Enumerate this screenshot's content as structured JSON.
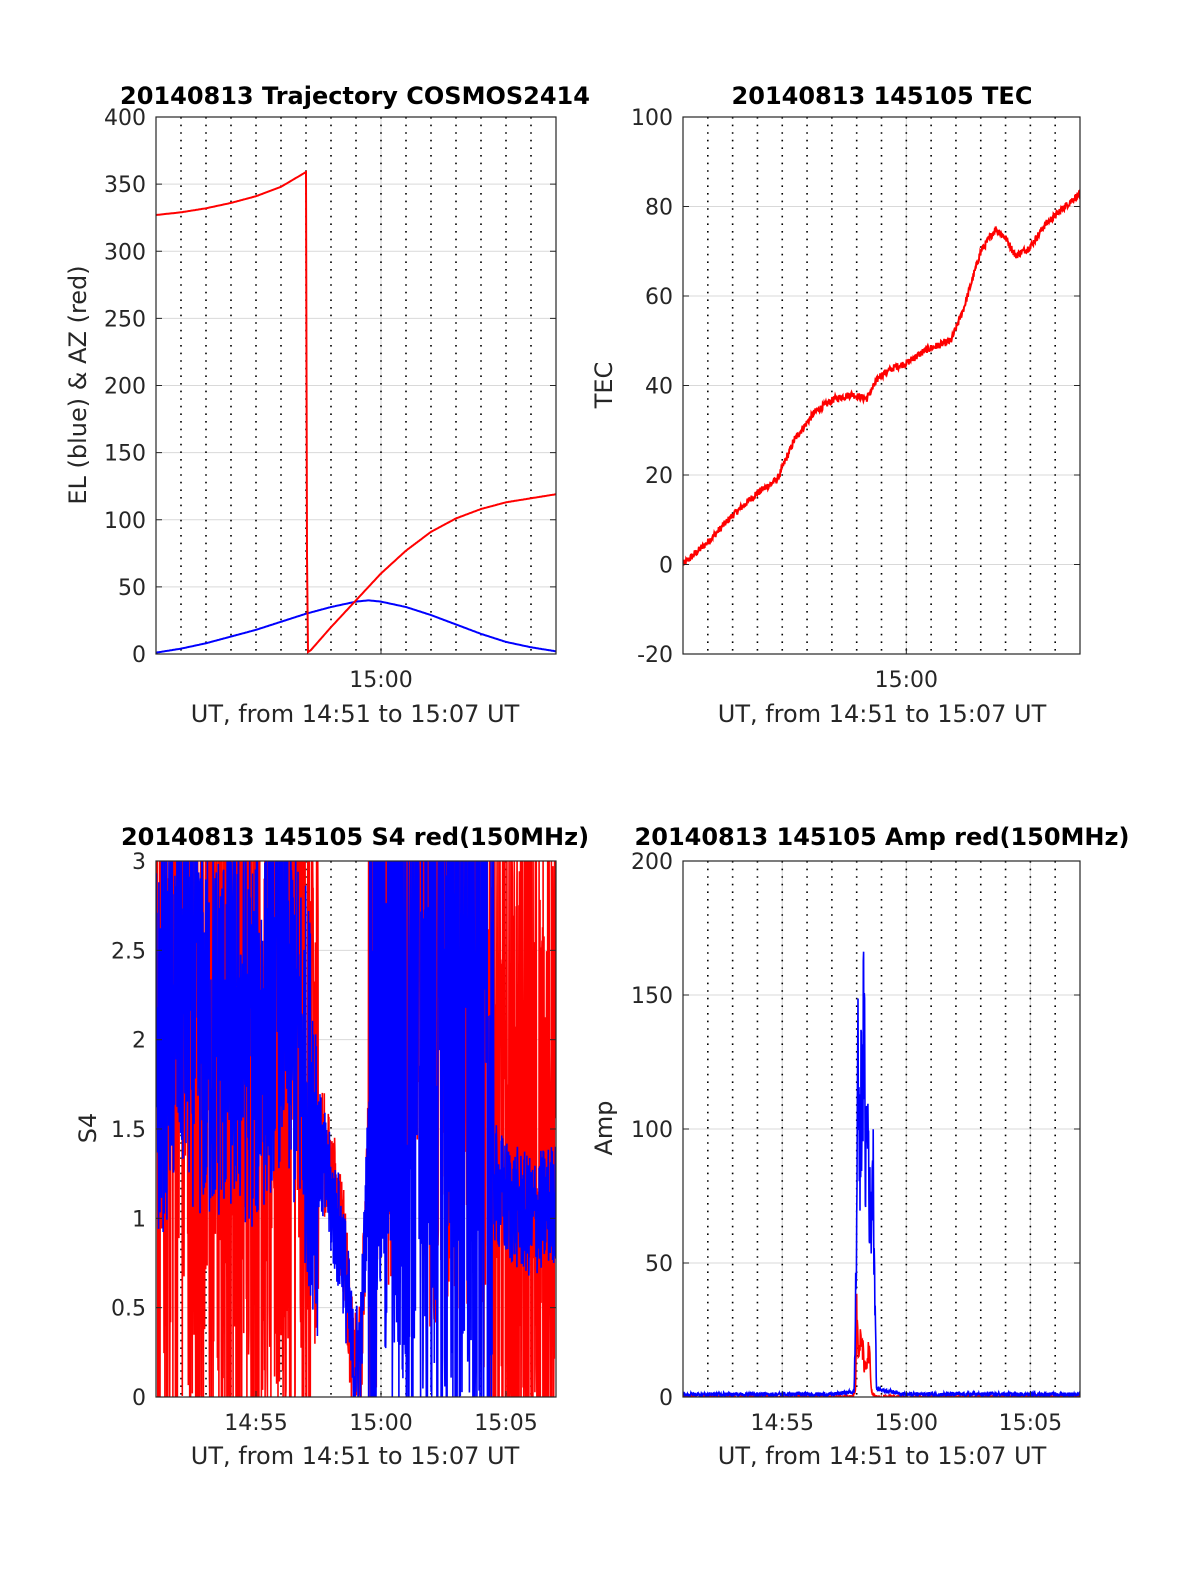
{
  "colors": {
    "el": "#0000ff",
    "az": "#ff0000",
    "grid_minor": "#000000",
    "grid_major": "#d9d9d9",
    "axis": "#262626"
  },
  "chart_data": [
    {
      "id": "trajectory",
      "type": "line",
      "title": "20140813 Trajectory COSMOS2414",
      "xlabel": "UT, from 14:51 to 15:07 UT",
      "ylabel": "EL (blue) & AZ (red)",
      "xlim_minutes": [
        0,
        16
      ],
      "xtick_minute": [
        9
      ],
      "xtick_labels": [
        "15:00"
      ],
      "ylim": [
        0,
        400
      ],
      "yticks": [
        0,
        50,
        100,
        150,
        200,
        250,
        300,
        350,
        400
      ],
      "ytick_labels": [
        "0",
        "50",
        "100",
        "150",
        "200",
        "250",
        "300",
        "350",
        "400"
      ],
      "series": [
        {
          "name": "EL",
          "color": "#0000ff",
          "x": [
            0,
            1,
            2,
            3,
            4,
            5,
            6,
            7,
            8,
            8.5,
            9,
            10,
            11,
            12,
            13,
            14,
            15,
            16
          ],
          "y": [
            1,
            4,
            8,
            13,
            18,
            24,
            30,
            35,
            39,
            40,
            39,
            35,
            29,
            22,
            15,
            9,
            5,
            2
          ]
        },
        {
          "name": "AZ",
          "color": "#ff0000",
          "x": [
            0,
            1,
            2,
            3,
            4,
            5,
            6,
            6.05,
            6.2,
            7,
            8,
            9,
            10,
            11,
            12,
            13,
            14,
            15,
            16
          ],
          "y": [
            327,
            329,
            332,
            336,
            341,
            348,
            359,
            1,
            3,
            20,
            40,
            60,
            77,
            91,
            101,
            108,
            113,
            116,
            119
          ]
        }
      ]
    },
    {
      "id": "tec",
      "type": "line",
      "title": "20140813 145105 TEC",
      "xlabel": "UT, from 14:51 to 15:07 UT",
      "ylabel": "TEC",
      "xlim_minutes": [
        0,
        16
      ],
      "xtick_minute": [
        9
      ],
      "xtick_labels": [
        "15:00"
      ],
      "ylim": [
        -20,
        100
      ],
      "yticks": [
        -20,
        0,
        20,
        40,
        60,
        80,
        100
      ],
      "ytick_labels": [
        "-20",
        "0",
        "20",
        "40",
        "60",
        "80",
        "100"
      ],
      "series": [
        {
          "name": "TEC",
          "color": "#ff0000",
          "x": [
            0,
            1,
            2,
            3,
            3.8,
            4.5,
            5.3,
            6.1,
            6.8,
            7.4,
            7.9,
            8.5,
            9.0,
            9.8,
            10.8,
            11.3,
            12.0,
            12.6,
            13.0,
            13.4,
            14.0,
            14.6,
            15.2,
            16.0
          ],
          "y": [
            0,
            5,
            11,
            16,
            19,
            28,
            34,
            37,
            38,
            37,
            42,
            44,
            45,
            48,
            50,
            57,
            70,
            75,
            73,
            69,
            71,
            76,
            79,
            83
          ]
        }
      ]
    },
    {
      "id": "s4",
      "type": "line",
      "title": "20140813 145105 S4 red(150MHz)",
      "xlabel": "UT, from 14:51 to 15:07 UT",
      "ylabel": "S4",
      "xlim_minutes": [
        0,
        16
      ],
      "xtick_minute": [
        4,
        9,
        14
      ],
      "xtick_labels": [
        "14:55",
        "15:00",
        "15:05"
      ],
      "ylim": [
        0,
        3
      ],
      "yticks": [
        0,
        0.5,
        1,
        1.5,
        2,
        2.5,
        3
      ],
      "ytick_labels": [
        "0",
        "0.5",
        "1",
        "1.5",
        "2",
        "2.5",
        "3"
      ],
      "series": [
        {
          "name": "S4 red",
          "color": "#ff0000",
          "x": [
            0,
            1,
            2,
            3,
            4,
            5,
            6,
            6.5,
            7,
            7.5,
            7.9,
            8.2,
            8.5,
            9,
            10,
            11,
            12,
            13,
            13.5,
            14,
            15,
            16
          ],
          "y": [
            1.8,
            2.4,
            1.9,
            2.2,
            2.1,
            2.3,
            1.9,
            1.5,
            1.2,
            0.9,
            0.1,
            0.2,
            1.5,
            2.8,
            3.0,
            2.7,
            2.9,
            2.8,
            1.3,
            1.0,
            1.1,
            1.0
          ]
        },
        {
          "name": "S4 blue",
          "color": "#0000ff",
          "x": [
            0,
            1,
            2,
            3,
            4,
            5,
            6,
            6.5,
            7,
            7.5,
            7.9,
            8.2,
            8.5,
            9,
            10,
            11,
            12,
            13,
            13.5,
            14,
            15,
            16
          ],
          "y": [
            1.9,
            2.3,
            2.0,
            2.1,
            2.0,
            2.4,
            1.8,
            1.4,
            1.1,
            0.8,
            0.15,
            0.3,
            1.4,
            2.5,
            2.0,
            2.2,
            1.9,
            2.1,
            1.2,
            1.1,
            1.0,
            1.1
          ]
        }
      ]
    },
    {
      "id": "amp",
      "type": "line",
      "title": "20140813 145105 Amp red(150MHz)",
      "xlabel": "UT, from 14:51 to 15:07 UT",
      "ylabel": "Amp",
      "xlim_minutes": [
        0,
        16
      ],
      "xtick_minute": [
        4,
        9,
        14
      ],
      "xtick_labels": [
        "14:55",
        "15:00",
        "15:05"
      ],
      "ylim": [
        0,
        200
      ],
      "yticks": [
        0,
        50,
        100,
        150,
        200
      ],
      "ytick_labels": [
        "0",
        "50",
        "100",
        "150",
        "200"
      ],
      "series": [
        {
          "name": "Amp red",
          "color": "#ff0000",
          "x": [
            0,
            6.8,
            6.95,
            7.0,
            7.1,
            7.2,
            7.3,
            7.5,
            7.6,
            7.8,
            16
          ],
          "y": [
            0,
            0,
            2,
            30,
            15,
            25,
            10,
            18,
            2,
            0,
            0
          ]
        },
        {
          "name": "Amp blue",
          "color": "#0000ff",
          "x": [
            0,
            3,
            6,
            6.9,
            7.0,
            7.05,
            7.1,
            7.2,
            7.3,
            7.35,
            7.45,
            7.55,
            7.65,
            7.8,
            9,
            12,
            16
          ],
          "y": [
            1,
            1,
            1,
            2,
            60,
            153,
            80,
            120,
            133,
            90,
            105,
            60,
            90,
            3,
            1,
            1,
            1
          ]
        }
      ]
    }
  ]
}
